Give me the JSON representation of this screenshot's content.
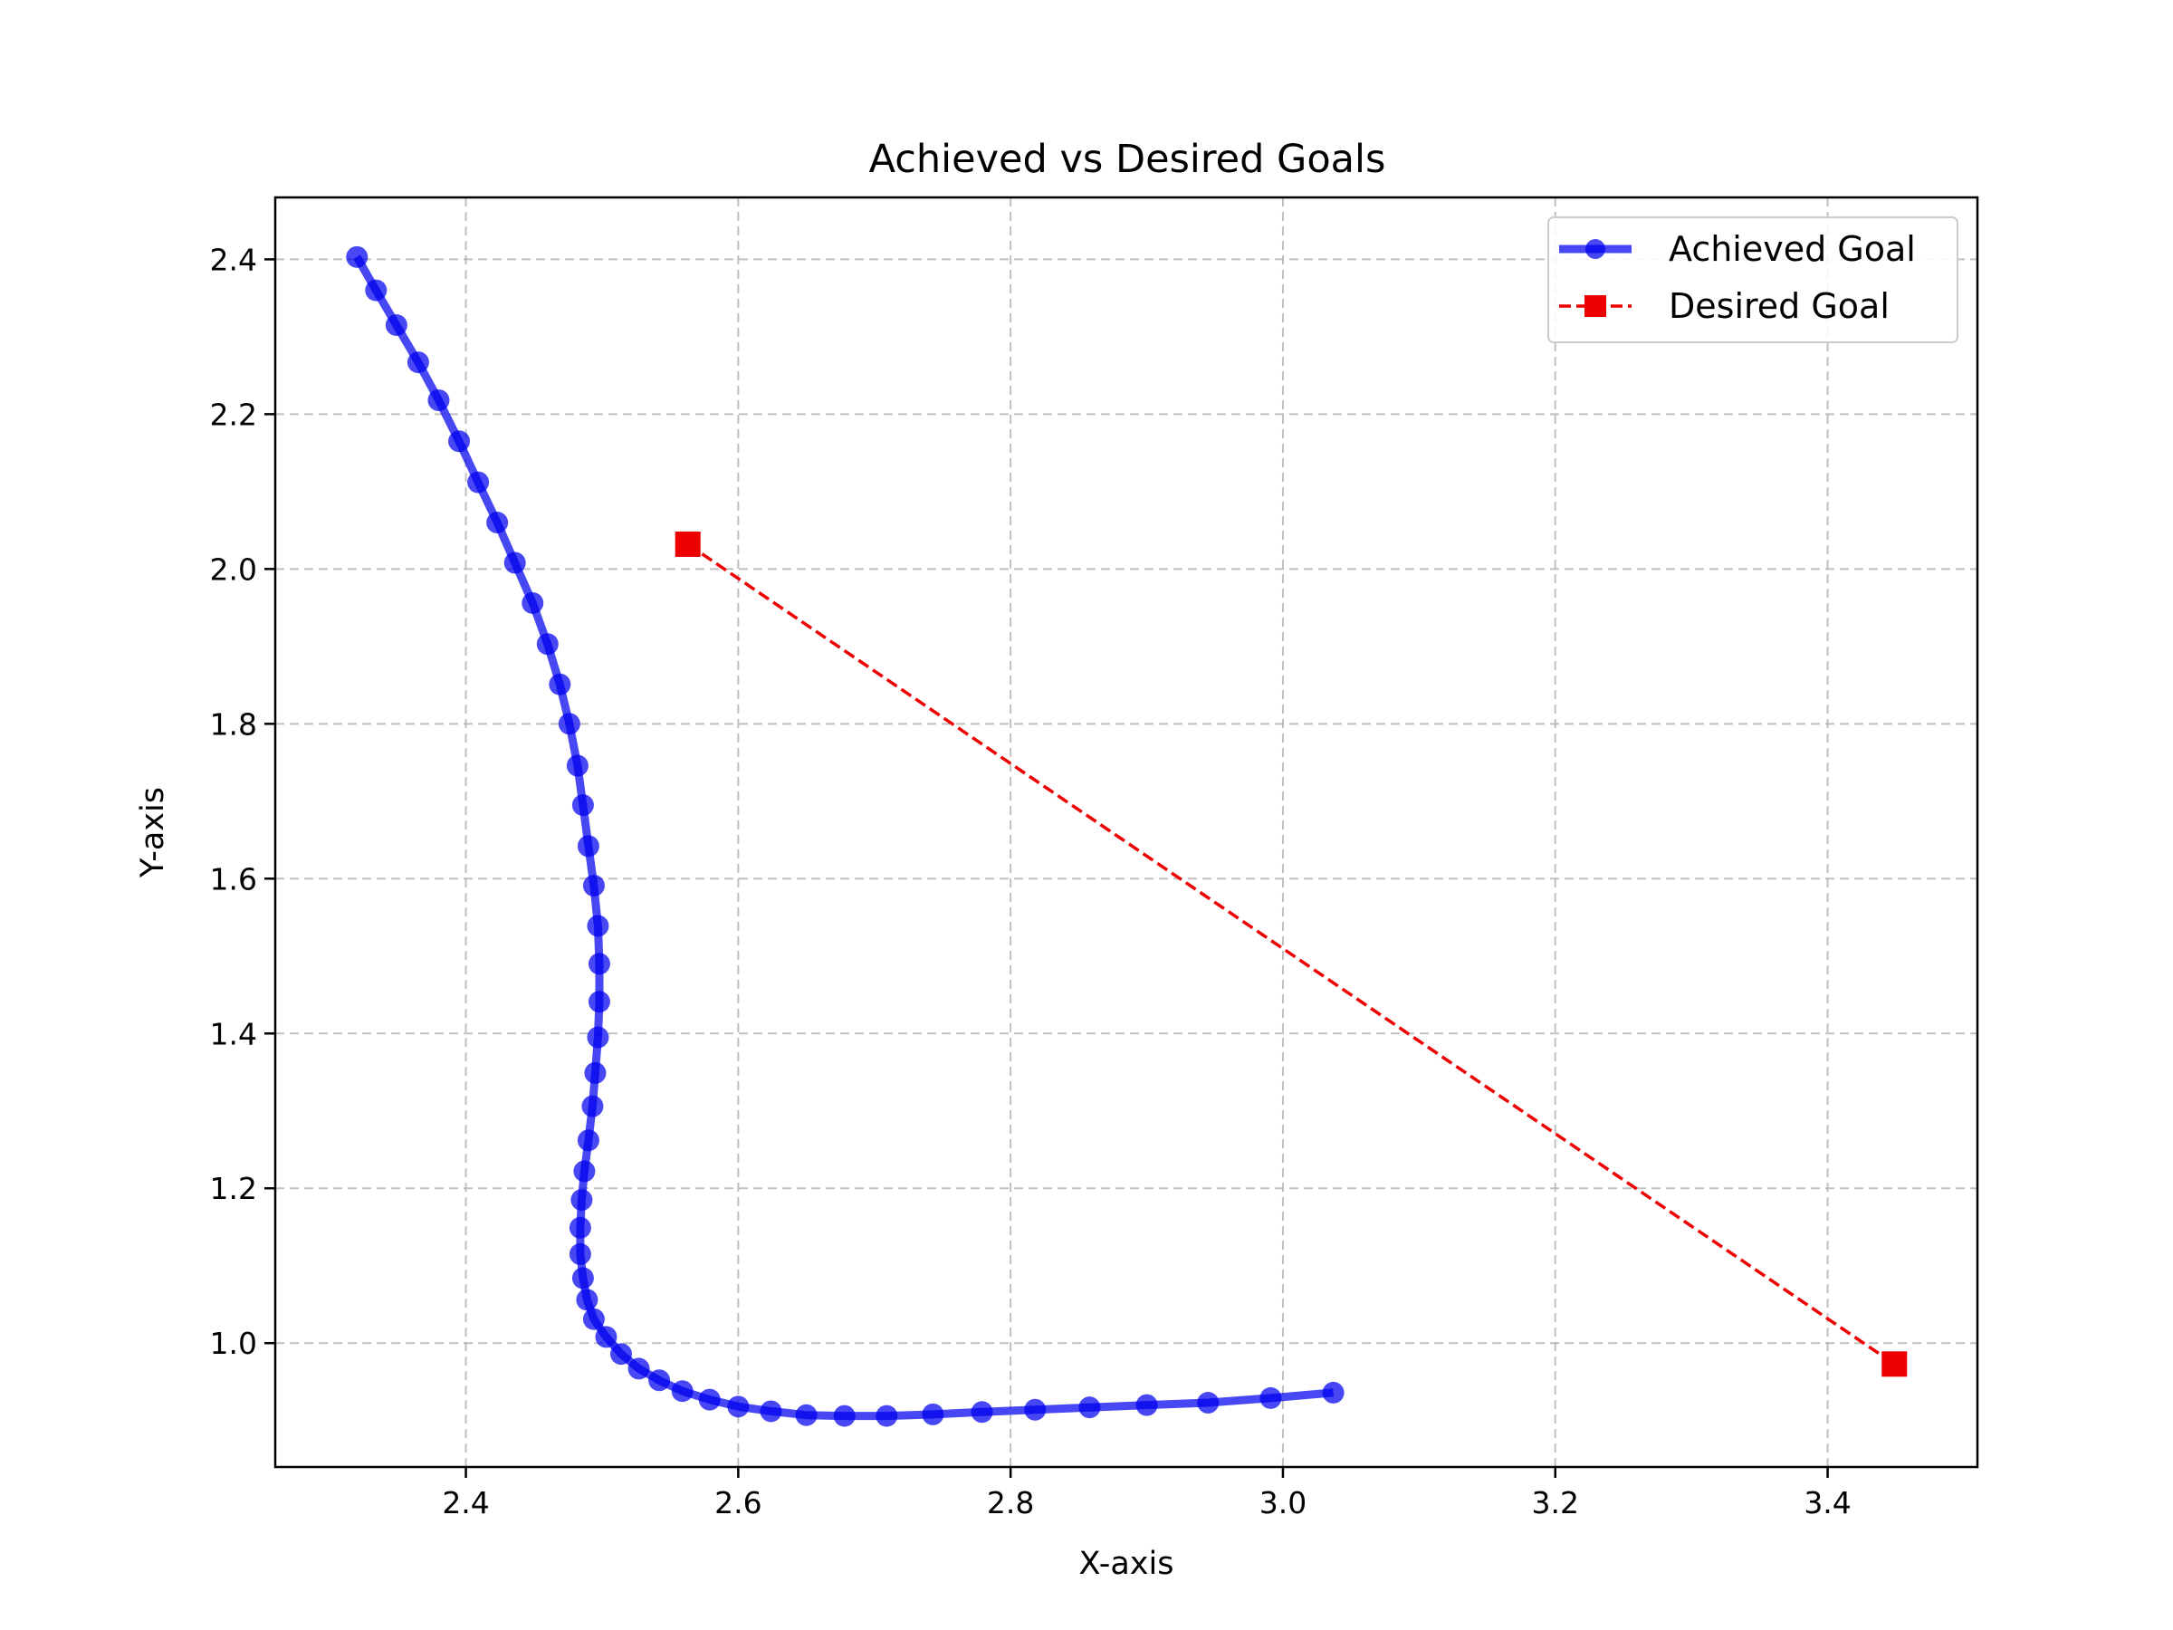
{
  "chart_data": {
    "type": "line",
    "title": "Achieved vs Desired Goals",
    "xlabel": "X-axis",
    "ylabel": "Y-axis",
    "xlim": [
      2.26,
      3.51
    ],
    "ylim": [
      0.84,
      2.48
    ],
    "xticks": [
      2.4,
      2.6,
      2.8,
      3.0,
      3.2,
      3.4
    ],
    "xtick_labels": [
      "2.4",
      "2.6",
      "2.8",
      "3.0",
      "3.2",
      "3.4"
    ],
    "yticks": [
      1.0,
      1.2,
      1.4,
      1.6,
      1.8,
      2.0,
      2.2,
      2.4
    ],
    "ytick_labels": [
      "1.0",
      "1.2",
      "1.4",
      "1.6",
      "1.8",
      "2.0",
      "2.2",
      "2.4"
    ],
    "grid": true,
    "legend_position": "top-right",
    "series": [
      {
        "name": "Achieved Goal",
        "color": "#0000ee",
        "marker": "circle",
        "line_style": "solid",
        "x": [
          2.32,
          2.334,
          2.349,
          2.365,
          2.38,
          2.395,
          2.409,
          2.423,
          2.436,
          2.449,
          2.46,
          2.469,
          2.476,
          2.482,
          2.486,
          2.49,
          2.494,
          2.497,
          2.498,
          2.498,
          2.497,
          2.495,
          2.493,
          2.49,
          2.487,
          2.485,
          2.484,
          2.484,
          2.486,
          2.489,
          2.494,
          2.503,
          2.514,
          2.527,
          2.542,
          2.559,
          2.579,
          2.6,
          2.624,
          2.65,
          2.678,
          2.709,
          2.743,
          2.779,
          2.818,
          2.858,
          2.9,
          2.945,
          2.991,
          3.037
        ],
        "y": [
          2.403,
          2.36,
          2.315,
          2.267,
          2.218,
          2.165,
          2.112,
          2.06,
          2.008,
          1.956,
          1.903,
          1.851,
          1.8,
          1.746,
          1.695,
          1.642,
          1.591,
          1.539,
          1.49,
          1.441,
          1.395,
          1.349,
          1.306,
          1.262,
          1.222,
          1.185,
          1.149,
          1.115,
          1.084,
          1.056,
          1.031,
          1.008,
          0.986,
          0.967,
          0.952,
          0.938,
          0.927,
          0.918,
          0.912,
          0.907,
          0.906,
          0.906,
          0.908,
          0.911,
          0.914,
          0.917,
          0.92,
          0.923,
          0.929,
          0.936
        ]
      },
      {
        "name": "Desired Goal",
        "color": "#ee0000",
        "marker": "square",
        "line_style": "dashed",
        "x": [
          2.563,
          3.449
        ],
        "y": [
          2.032,
          0.973
        ]
      }
    ]
  }
}
